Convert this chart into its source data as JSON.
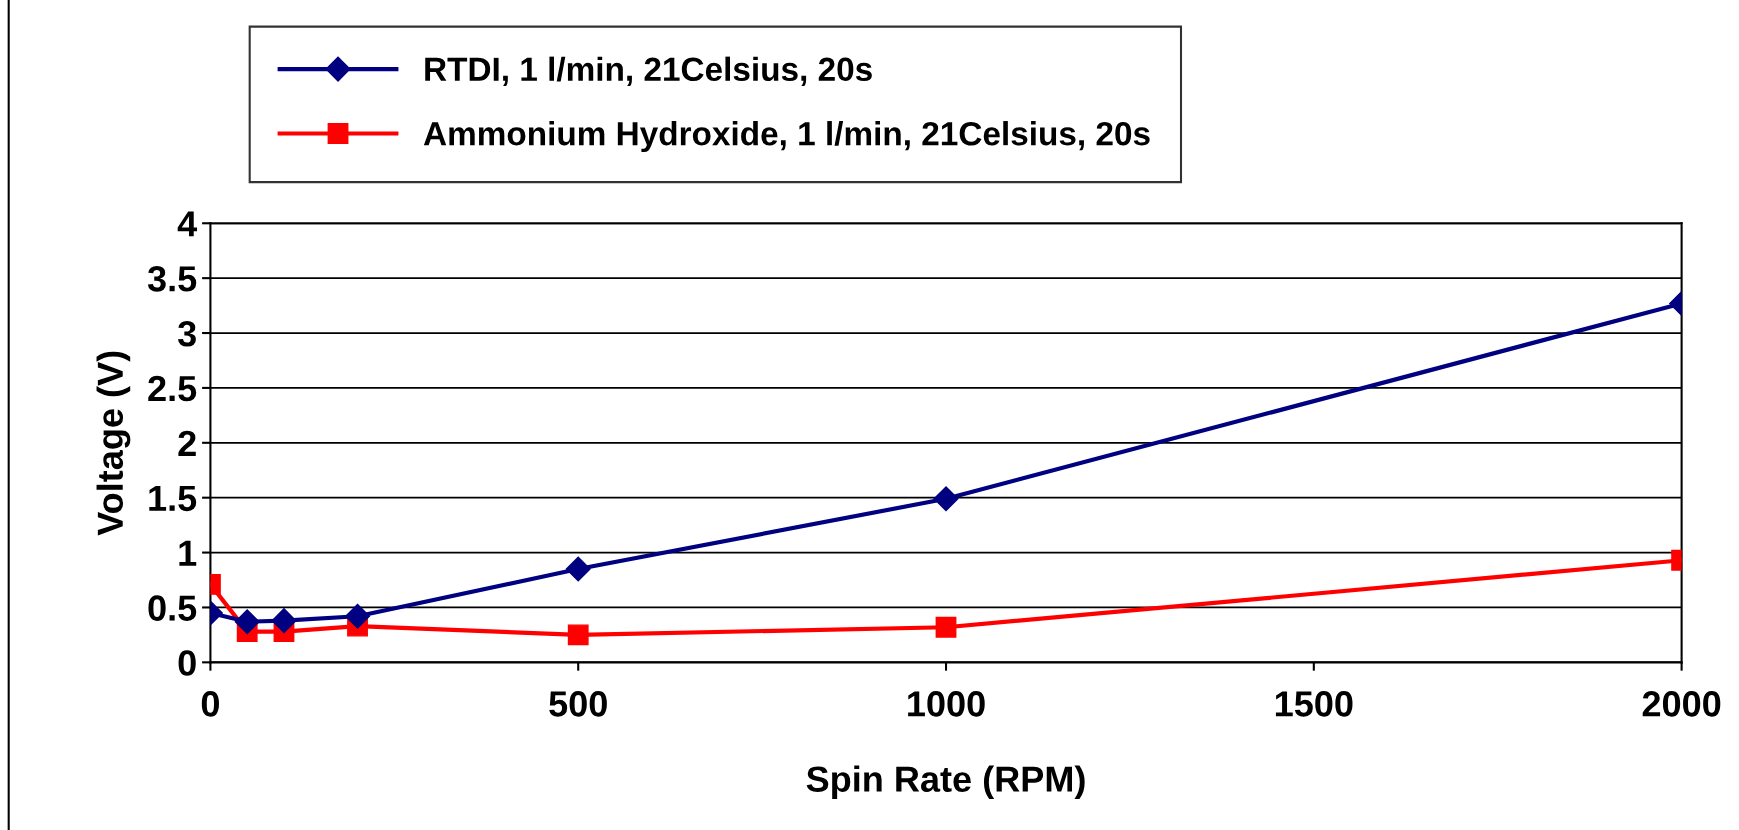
{
  "chart_data": {
    "type": "line",
    "xlabel": "Spin Rate (RPM)",
    "ylabel": "Voltage (V)",
    "x": [
      0,
      50,
      100,
      200,
      500,
      1000,
      2000
    ],
    "series": [
      {
        "name": "RTDI, 1 l/min, 21Celsius, 20s",
        "color": "#000080",
        "marker": "diamond",
        "values": [
          0.45,
          0.37,
          0.38,
          0.42,
          0.85,
          1.49,
          3.27
        ]
      },
      {
        "name": "Ammonium Hydroxide, 1 l/min, 21Celsius, 20s",
        "color": "#ff0000",
        "marker": "square",
        "values": [
          0.71,
          0.28,
          0.28,
          0.33,
          0.25,
          0.32,
          0.93
        ]
      }
    ],
    "xlim": [
      0,
      2000
    ],
    "xticks": [
      0,
      500,
      1000,
      1500,
      2000
    ],
    "ylim": [
      0,
      4
    ],
    "yticks": [
      0,
      0.5,
      1,
      1.5,
      2,
      2.5,
      3,
      3.5,
      4
    ],
    "grid": "y",
    "legend": "top",
    "line_style": "solid"
  }
}
